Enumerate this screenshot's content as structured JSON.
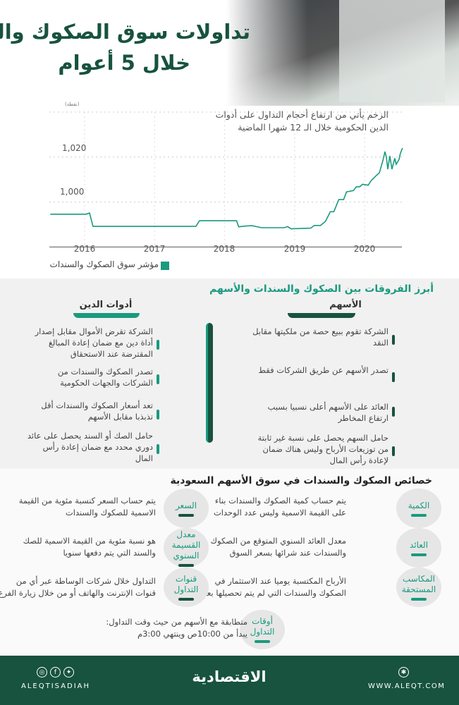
{
  "header": {
    "title_line1": "تداولات سوق الصكوك والسندات",
    "title_line2": "خلال 5 أعوام"
  },
  "chart_data": {
    "type": "line",
    "unit_label": "(نقطة)",
    "annotation": [
      "الزخم يأتي من ارتفاع أحجام التداول على أدوات",
      "الدين الحكومية خلال الـ 12 شهرا الماضية"
    ],
    "x_ticks": [
      "2016",
      "2017",
      "2018",
      "2019",
      "2020"
    ],
    "y_ticks": [
      {
        "value": 1000,
        "label": "1,000"
      },
      {
        "value": 1020,
        "label": "1,020"
      }
    ],
    "ylim": [
      980,
      1040
    ],
    "xlim": [
      2015.5,
      2020.55
    ],
    "grid": true,
    "legend_position": "bottom-left",
    "series": [
      {
        "name": "مؤشر سوق الصكوك والسندات",
        "color": "#1a9a7e",
        "points": [
          [
            2015.51,
            994.6
          ],
          [
            2016.02,
            994.6
          ],
          [
            2016.07,
            995.1
          ],
          [
            2016.12,
            989.2
          ],
          [
            2017.59,
            989.2
          ],
          [
            2017.64,
            991.7
          ],
          [
            2018.17,
            991.7
          ],
          [
            2018.2,
            989.0
          ],
          [
            2018.29,
            989.3
          ],
          [
            2018.39,
            989.5
          ],
          [
            2018.53,
            988.6
          ],
          [
            2018.85,
            988.6
          ],
          [
            2018.9,
            989.1
          ],
          [
            2018.95,
            988.1
          ],
          [
            2019.23,
            988.4
          ],
          [
            2019.28,
            989.6
          ],
          [
            2019.37,
            989.6
          ],
          [
            2019.44,
            991.4
          ],
          [
            2019.51,
            995.7
          ],
          [
            2019.56,
            995.7
          ],
          [
            2019.63,
            1001.1
          ],
          [
            2019.7,
            1001.1
          ],
          [
            2019.74,
            1004.5
          ],
          [
            2019.84,
            1005.1
          ],
          [
            2019.88,
            1006.8
          ],
          [
            2019.93,
            1006.8
          ],
          [
            2019.97,
            1007.9
          ],
          [
            2020.05,
            1007.5
          ],
          [
            2020.09,
            1009.4
          ],
          [
            2020.17,
            1011.9
          ],
          [
            2020.21,
            1013.0
          ],
          [
            2020.26,
            1018.4
          ],
          [
            2020.29,
            1022.4
          ],
          [
            2020.31,
            1020.0
          ],
          [
            2020.33,
            1014.6
          ],
          [
            2020.36,
            1020.5
          ],
          [
            2020.39,
            1014.6
          ],
          [
            2020.43,
            1019.5
          ],
          [
            2020.45,
            1016.8
          ],
          [
            2020.49,
            1018.9
          ],
          [
            2020.51,
            1021.6
          ],
          [
            2020.54,
            1024.0
          ]
        ]
      }
    ]
  },
  "differences": {
    "title": "أبرز الفروقات بين الصكوك والسندات والأسهم",
    "stocks": {
      "heading": "الأسهم",
      "items": [
        "الشركة تقوم ببيع حصة من ملكيتها مقابل النقد",
        "تصدر الأسهم عن طريق الشركات فقط",
        "العائد على الأسهم أعلى نسبيا بسبب ارتفاع المخاطر",
        "حامل السهم يحصل على نسبة غير ثابتة من توزيعات الأرباح وليس هناك ضمان لإعادة رأس المال"
      ]
    },
    "debt": {
      "heading": "أدوات الدين",
      "items": [
        "الشركة تقرض الأموال مقابل إصدار أداة دين مع ضمان إعادة المبالغ المقترضة عند الاستحقاق",
        "تصدر الصكوك والسندات من الشركات والجهات الحكومية",
        "تعد أسعار الصكوك والسندات أقل تذبذبا مقابل الأسهم",
        "حامل الصك أو السند يحصل على عائد دوري محدد مع ضمان إعادة رأس المال"
      ]
    },
    "colors": {
      "stocks": "#17533f",
      "debt": "#1a9a7e"
    }
  },
  "features": {
    "title": "خصائص الصكوك والسندات في سوق الأسهم السعودية",
    "items": [
      {
        "label": "الكمية",
        "text": [
          "يتم حساب كمية الصكوك والسندات بناء",
          "على القيمة الاسمية وليس عدد الوحدات"
        ]
      },
      {
        "label": "السعر",
        "text": [
          "يتم حساب السعر كنسبة مئوية من القيمة",
          "الاسمية للصكوك والسندات"
        ]
      },
      {
        "label": "العائد",
        "text": [
          "معدل العائد السنوي المتوقع من الصكوك",
          "والسندات عند شرائها بسعر السوق"
        ]
      },
      {
        "label": "معدل القسيمة السنوي",
        "text": [
          "هو نسبة مئوية من القيمة الاسمية للصك",
          "والسند التي يتم دفعها سنويا"
        ]
      },
      {
        "label": "المكاسب المستحقة",
        "text": [
          "الأرباح المكتسبة يوميا عند الاستثمار في",
          "الصكوك والسندات التي لم يتم تحصيلها بعد"
        ]
      },
      {
        "label": "قنوات التداول",
        "text": [
          "التداول خلال شركات الوساطة عبر أي من",
          "قنوات الإنترنت والهاتف أو من خلال زيارة الفرع"
        ]
      },
      {
        "label": "أوقات التداول",
        "text": [
          "متطابقة مع الأسهم من حيث وقت التداول:",
          "يبدأ من 10:00ص وينتهي 3:00م"
        ]
      }
    ]
  },
  "footer": {
    "handle": "ALEQTISADIAH",
    "logo": "الاقتصادية",
    "website": "WWW.ALEQT.COM",
    "icons": [
      "instagram-icon",
      "facebook-icon",
      "twitter-icon",
      "globe-icon"
    ]
  }
}
